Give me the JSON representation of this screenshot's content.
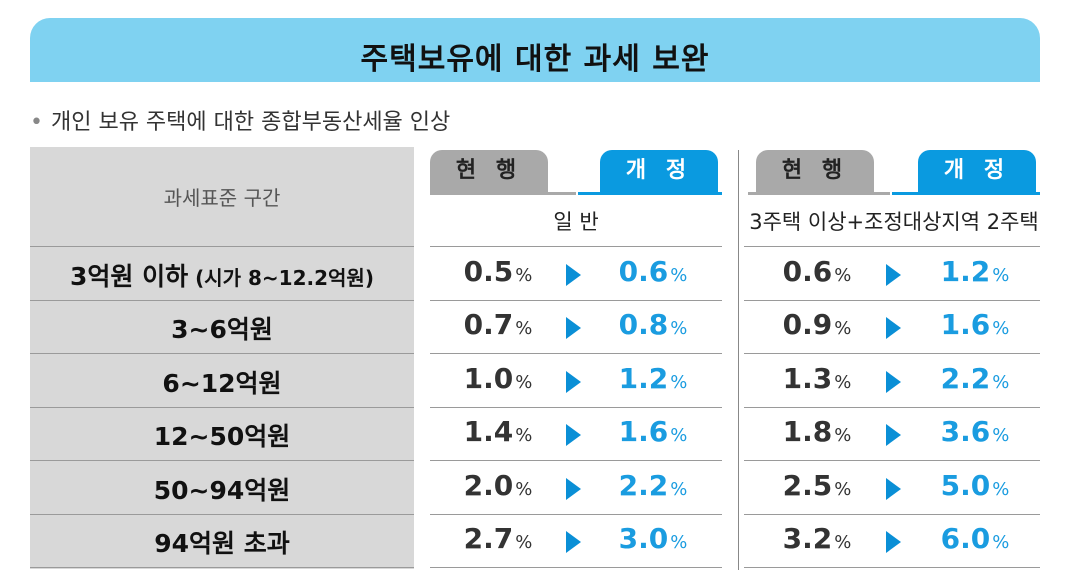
{
  "title": "주택보유에 대한 과세 보완",
  "subtitle_bullet": "•",
  "subtitle": "개인 보유 주택에 대한 종합부동산세율 인상",
  "table": {
    "row_header": "과세표준 구간",
    "tab_current": "현 행",
    "tab_revised": "개 정",
    "group_general": "일 반",
    "group_multi": "3주택 이상+조정대상지역 2주택",
    "unit": "%",
    "rows": [
      {
        "label": "3억원 이하",
        "note": "(시가 8~12.2억원)",
        "gen_cur": "0.5",
        "gen_new": "0.6",
        "multi_cur": "0.6",
        "multi_new": "1.2"
      },
      {
        "label": "3~6억원",
        "note": "",
        "gen_cur": "0.7",
        "gen_new": "0.8",
        "multi_cur": "0.9",
        "multi_new": "1.6"
      },
      {
        "label": "6~12억원",
        "note": "",
        "gen_cur": "1.0",
        "gen_new": "1.2",
        "multi_cur": "1.3",
        "multi_new": "2.2"
      },
      {
        "label": "12~50억원",
        "note": "",
        "gen_cur": "1.4",
        "gen_new": "1.6",
        "multi_cur": "1.8",
        "multi_new": "3.6"
      },
      {
        "label": "50~94억원",
        "note": "",
        "gen_cur": "2.0",
        "gen_new": "2.2",
        "multi_cur": "2.5",
        "multi_new": "5.0"
      },
      {
        "label": "94억원 초과",
        "note": "",
        "gen_cur": "2.7",
        "gen_new": "3.0",
        "multi_cur": "3.2",
        "multi_new": "6.0"
      }
    ]
  },
  "colors": {
    "banner": "#7fd2f1",
    "accent_blue": "#0a9ae0",
    "current_grey": "#a9a9a9",
    "label_panel": "#d8d8d8"
  }
}
